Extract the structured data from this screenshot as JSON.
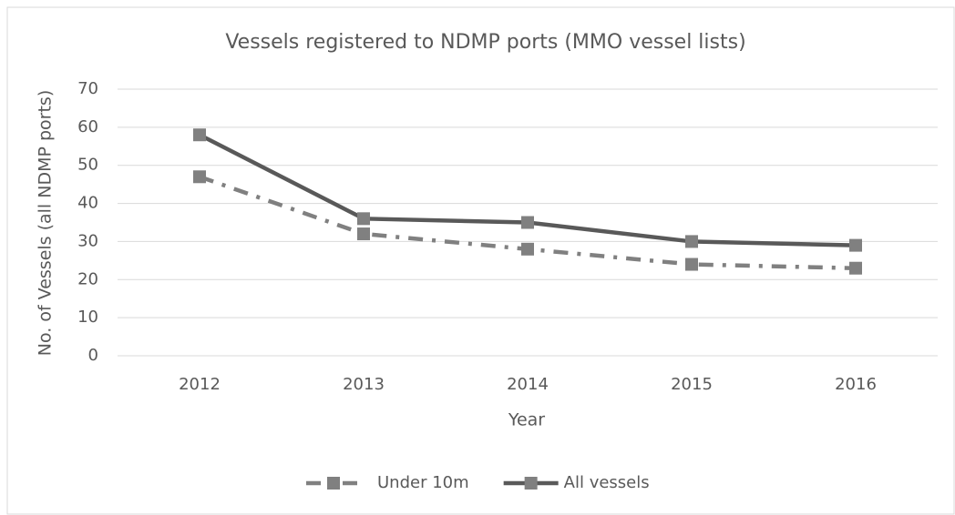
{
  "chart_data": {
    "type": "line",
    "title": "Vessels registered to NDMP ports (MMO vessel lists)",
    "x_label": "Year",
    "y_label": "No. of Vessels (all NDMP ports)",
    "categories": [
      "2012",
      "2013",
      "2014",
      "2015",
      "2016"
    ],
    "series": [
      {
        "name": "Under 10m",
        "color": "#808080",
        "dash": "dash-dot",
        "values": [
          47,
          32,
          28,
          24,
          23
        ]
      },
      {
        "name": "All vessels",
        "color": "#595959",
        "dash": "solid",
        "values": [
          58,
          36,
          35,
          30,
          29
        ]
      }
    ],
    "marker_color": "#808080",
    "ylim": [
      0,
      70
    ],
    "yticks": [
      0,
      10,
      20,
      30,
      40,
      50,
      60,
      70
    ],
    "grid": true,
    "legend": "bottom"
  }
}
